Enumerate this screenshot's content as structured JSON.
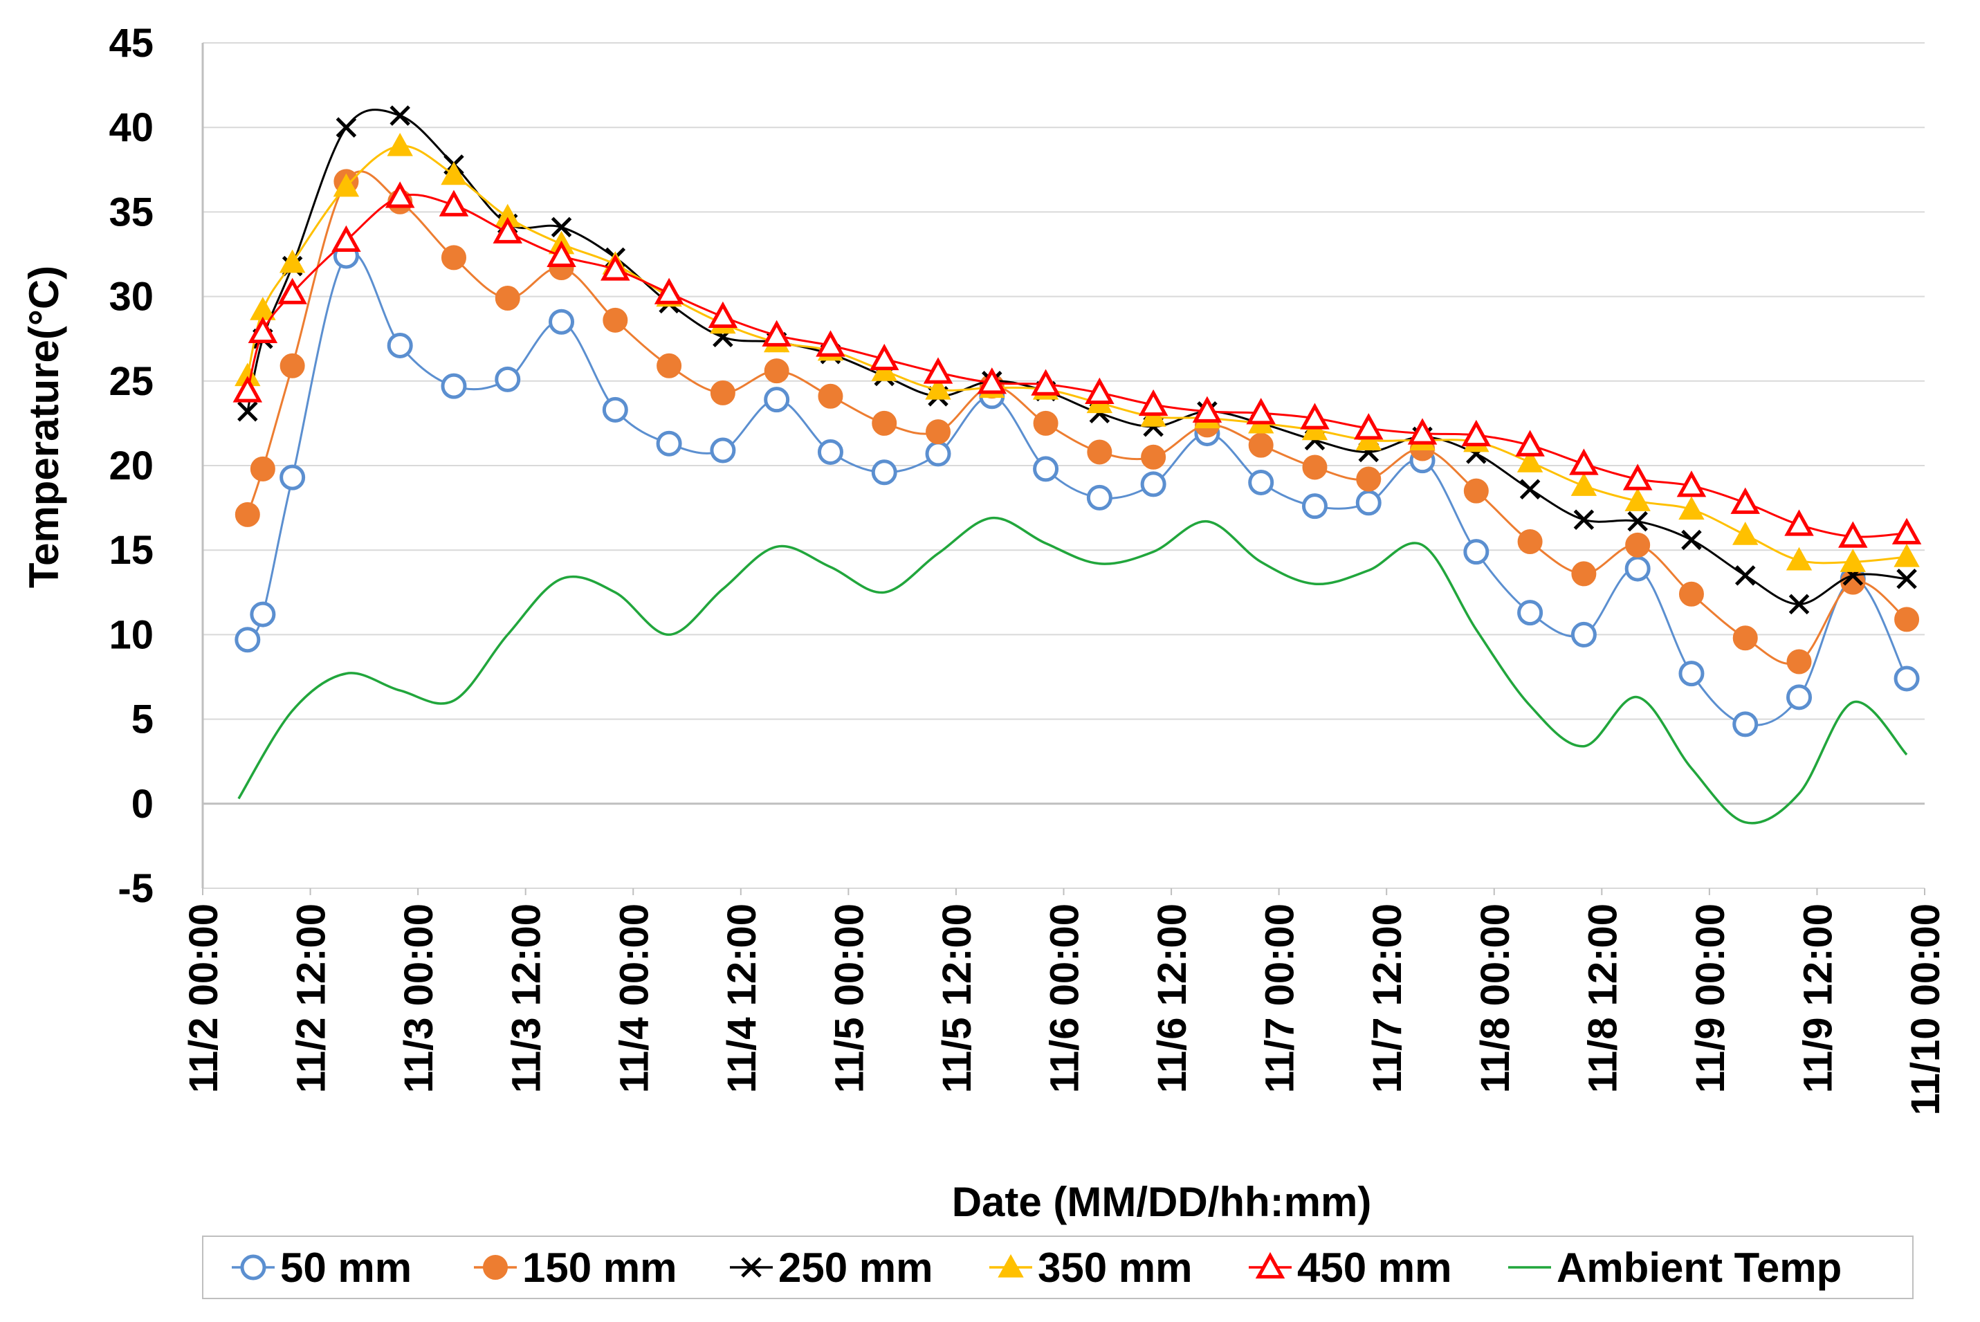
{
  "chart_data": {
    "type": "line",
    "title": "",
    "xlabel": "Date (MM/DD/hh:mm)",
    "ylabel": "Temperature(°C)",
    "ylim": [
      -5,
      45
    ],
    "yticks": [
      -5,
      0,
      5,
      10,
      15,
      20,
      25,
      30,
      35,
      40,
      45
    ],
    "xlim_hours": [
      0,
      192
    ],
    "xtick_hours": [
      0,
      12,
      24,
      36,
      48,
      60,
      72,
      84,
      96,
      108,
      120,
      132,
      144,
      156,
      168,
      180,
      192
    ],
    "xtick_labels": [
      "11/2 00:00",
      "11/2 12:00",
      "11/3 00:00",
      "11/3 12:00",
      "11/4 00:00",
      "11/4 12:00",
      "11/5 00:00",
      "11/5 12:00",
      "11/6 00:00",
      "11/6 12:00",
      "11/7 00:00",
      "11/7 12:00",
      "11/8 00:00",
      "11/8 12:00",
      "11/9 00:00",
      "11/9 12:00",
      "11/10 00:00"
    ],
    "grid": "horizontal",
    "legend_position": "bottom",
    "series": [
      {
        "name": "50 mm",
        "color": "#5b8fd0",
        "marker": "circle-open",
        "x": [
          5,
          6.7,
          10,
          16,
          22,
          28,
          34,
          40,
          46,
          52,
          58,
          64,
          70,
          76,
          82,
          88,
          94,
          100,
          106,
          112,
          118,
          124,
          130,
          136,
          142,
          148,
          154,
          160,
          166,
          172,
          178,
          184,
          190
        ],
        "y": [
          9.7,
          11.2,
          19.3,
          32.4,
          27.1,
          24.7,
          25.1,
          28.5,
          23.3,
          21.3,
          20.9,
          23.9,
          20.8,
          19.6,
          20.7,
          24.1,
          19.8,
          18.1,
          18.9,
          21.9,
          19.0,
          17.6,
          17.8,
          20.3,
          14.9,
          11.3,
          10.0,
          13.9,
          7.7,
          4.7,
          6.3,
          13.3,
          7.4
        ]
      },
      {
        "name": "150 mm",
        "color": "#ed7d31",
        "marker": "circle-filled",
        "x": [
          5,
          6.7,
          10,
          16,
          22,
          28,
          34,
          40,
          46,
          52,
          58,
          64,
          70,
          76,
          82,
          88,
          94,
          100,
          106,
          112,
          118,
          124,
          130,
          136,
          142,
          148,
          154,
          160,
          166,
          172,
          178,
          184,
          190
        ],
        "y": [
          17.1,
          19.8,
          25.9,
          36.8,
          35.6,
          32.3,
          29.9,
          31.7,
          28.6,
          25.9,
          24.3,
          25.6,
          24.1,
          22.5,
          22.0,
          24.7,
          22.5,
          20.8,
          20.5,
          22.4,
          21.2,
          19.9,
          19.2,
          21.0,
          18.5,
          15.5,
          13.6,
          15.3,
          12.4,
          9.8,
          8.4,
          13.1,
          10.9
        ]
      },
      {
        "name": "250 mm",
        "color": "#000000",
        "marker": "x",
        "x": [
          5,
          6.7,
          10,
          16,
          22,
          28,
          34,
          40,
          46,
          52,
          58,
          64,
          70,
          76,
          82,
          88,
          94,
          100,
          106,
          112,
          118,
          124,
          130,
          136,
          142,
          148,
          154,
          160,
          166,
          172,
          178,
          184,
          190
        ],
        "y": [
          23.2,
          27.5,
          31.8,
          40.0,
          40.7,
          37.8,
          34.3,
          34.1,
          32.3,
          29.6,
          27.6,
          27.3,
          26.6,
          25.3,
          24.1,
          25.0,
          24.4,
          23.1,
          22.3,
          23.2,
          22.5,
          21.5,
          20.8,
          21.7,
          20.7,
          18.6,
          16.8,
          16.7,
          15.6,
          13.5,
          11.8,
          13.5,
          13.3
        ]
      },
      {
        "name": "350 mm",
        "color": "#ffc000",
        "marker": "triangle-filled",
        "x": [
          5,
          6.7,
          10,
          16,
          22,
          28,
          34,
          40,
          46,
          52,
          58,
          64,
          70,
          76,
          82,
          88,
          94,
          100,
          106,
          112,
          118,
          124,
          130,
          136,
          142,
          148,
          154,
          160,
          166,
          172,
          178,
          184,
          190
        ],
        "y": [
          25.3,
          29.2,
          32.0,
          36.5,
          38.9,
          37.2,
          34.7,
          33.1,
          31.9,
          30.0,
          28.4,
          27.3,
          26.8,
          25.6,
          24.5,
          24.6,
          24.5,
          23.7,
          22.9,
          22.8,
          22.5,
          22.1,
          21.5,
          21.5,
          21.4,
          20.2,
          18.8,
          17.9,
          17.4,
          15.9,
          14.4,
          14.3,
          14.6
        ]
      },
      {
        "name": "450 mm",
        "color": "#ff0000",
        "marker": "triangle-open",
        "x": [
          5,
          6.7,
          10,
          16,
          22,
          28,
          34,
          40,
          46,
          52,
          58,
          64,
          70,
          76,
          82,
          88,
          94,
          100,
          106,
          112,
          118,
          124,
          130,
          136,
          142,
          148,
          154,
          160,
          166,
          172,
          178,
          184,
          190
        ],
        "y": [
          24.4,
          27.9,
          30.2,
          33.3,
          35.9,
          35.4,
          33.8,
          32.4,
          31.6,
          30.2,
          28.8,
          27.7,
          27.1,
          26.3,
          25.5,
          24.9,
          24.8,
          24.3,
          23.6,
          23.2,
          23.1,
          22.8,
          22.2,
          21.9,
          21.8,
          21.2,
          20.1,
          19.2,
          18.8,
          17.8,
          16.5,
          15.8,
          16.0
        ]
      },
      {
        "name": "Ambient Temp",
        "color": "#21a63c",
        "marker": "none",
        "x": [
          4,
          10,
          16,
          22,
          28,
          34,
          40,
          46,
          52,
          58,
          64,
          70,
          76,
          82,
          88,
          94,
          100,
          106,
          112,
          118,
          124,
          130,
          136,
          142,
          148,
          154,
          160,
          166,
          172,
          178,
          184,
          190
        ],
        "y": [
          0.3,
          5.5,
          7.7,
          6.7,
          6.1,
          10.0,
          13.3,
          12.5,
          10.0,
          12.7,
          15.2,
          14.0,
          12.5,
          14.8,
          16.9,
          15.4,
          14.2,
          14.9,
          16.7,
          14.3,
          13.0,
          13.8,
          15.3,
          10.3,
          5.8,
          3.4,
          6.3,
          2.1,
          -1.1,
          0.6,
          6.0,
          2.9
        ]
      }
    ]
  }
}
